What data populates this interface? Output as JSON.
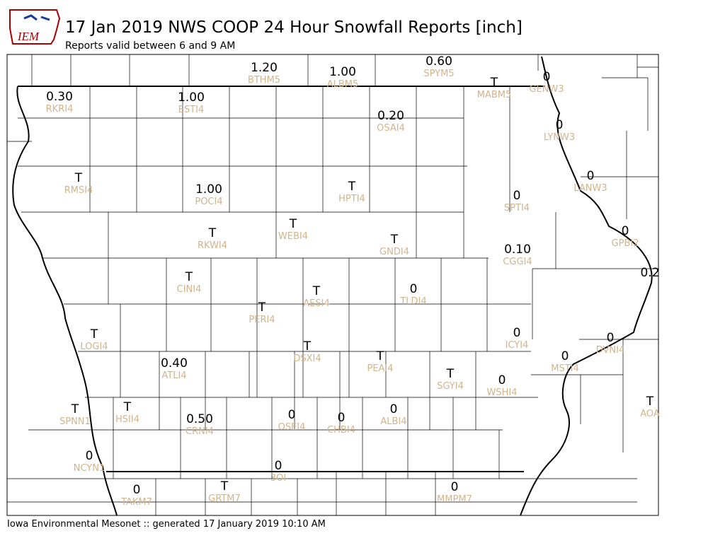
{
  "header": {
    "title": "17 Jan 2019 NWS COOP 24 Hour Snowfall Reports [inch]",
    "subtitle": "Reports valid between 6 and 9 AM",
    "logo": "IEM"
  },
  "footer": "Iowa Environmental Mesonet :: generated 17 January 2019 10:10 AM",
  "reports": [
    {
      "value": "1.20",
      "station": "BTHM5"
    },
    {
      "value": "1.00",
      "station": "ALBM5"
    },
    {
      "value": "0.60",
      "station": "SPYM5"
    },
    {
      "value": "T",
      "station": "MABM5"
    },
    {
      "value": "0",
      "station": "GENW3"
    },
    {
      "value": "0.30",
      "station": "RKRI4"
    },
    {
      "value": "1.00",
      "station": "ESTI4"
    },
    {
      "value": "0.20",
      "station": "OSAI4"
    },
    {
      "value": "0",
      "station": "LYNW3"
    },
    {
      "value": "0",
      "station": "LANW3"
    },
    {
      "value": "T",
      "station": "RMSI4"
    },
    {
      "value": "1.00",
      "station": "POCI4"
    },
    {
      "value": "T",
      "station": "HPTI4"
    },
    {
      "value": "0",
      "station": "SPTI4"
    },
    {
      "value": "0",
      "station": "GPBI2"
    },
    {
      "value": "T",
      "station": "RKWI4"
    },
    {
      "value": "T",
      "station": "WEBI4"
    },
    {
      "value": "T",
      "station": "GNDI4"
    },
    {
      "value": "0.10",
      "station": "CGGI4"
    },
    {
      "value": "0.2"
    },
    {
      "value": "T",
      "station": "CINI4"
    },
    {
      "value": "T",
      "station": "AESI4"
    },
    {
      "value": "0",
      "station": "TLDI4"
    },
    {
      "value": "T",
      "station": "PERI4"
    },
    {
      "value": "T",
      "station": "LOGI4"
    },
    {
      "value": "0",
      "station": "ICYI4"
    },
    {
      "value": "0",
      "station": "DVNI4"
    },
    {
      "value": "T",
      "station": "DSXI4"
    },
    {
      "value": "T",
      "station": "PEAI4"
    },
    {
      "value": "0",
      "station": "MSTI4"
    },
    {
      "value": "0.40",
      "station": "ATLI4"
    },
    {
      "value": "T",
      "station": "SGYI4"
    },
    {
      "value": "0",
      "station": "WSHI4"
    },
    {
      "value": "T",
      "station": "AOA"
    },
    {
      "value": "T",
      "station": "SPNN1"
    },
    {
      "value": "T",
      "station": "HSII4"
    },
    {
      "value": "0.50",
      "station": "CRNI4"
    },
    {
      "value": "0",
      "station": "OSEI4"
    },
    {
      "value": "0",
      "station": "CHBI4"
    },
    {
      "value": "0",
      "station": "ALBI4"
    },
    {
      "value": "0",
      "station": "NCYN1"
    },
    {
      "value": "0",
      "station": "3OI"
    },
    {
      "value": "0",
      "station": "TAKM7"
    },
    {
      "value": "T",
      "station": "GRTM7"
    },
    {
      "value": "0",
      "station": "MMPM7"
    }
  ]
}
